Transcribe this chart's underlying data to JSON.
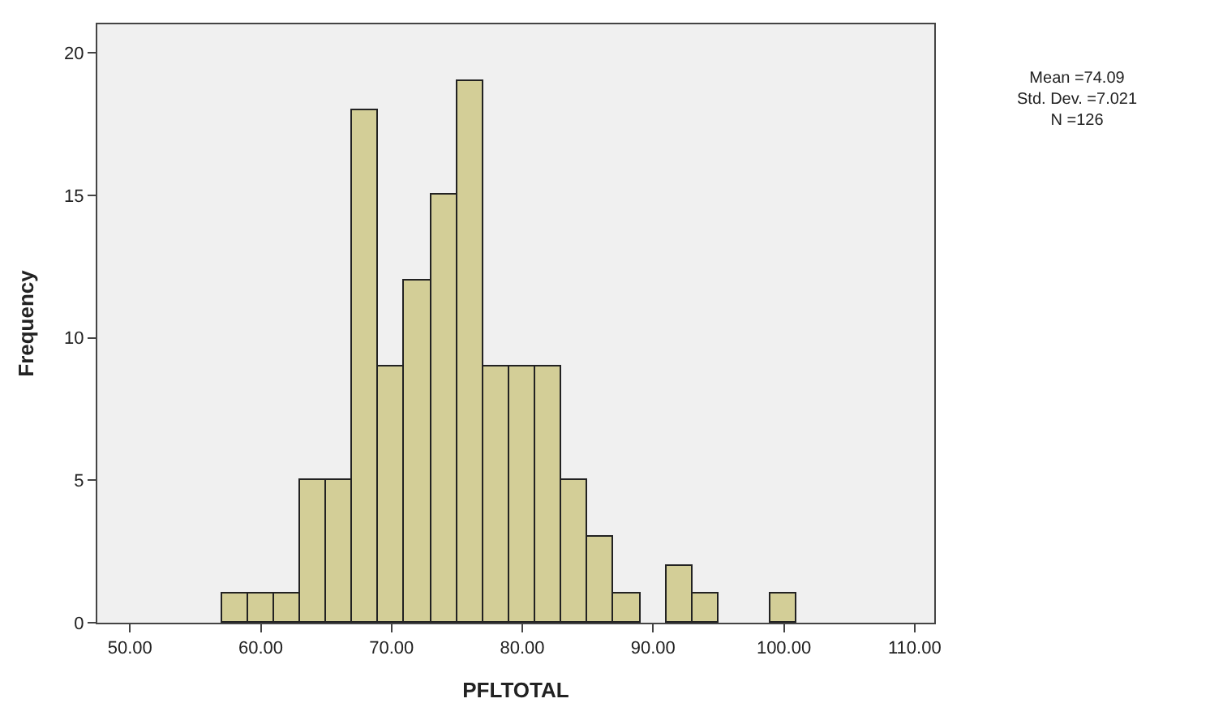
{
  "chart_data": {
    "type": "histogram",
    "xlabel": "PFLTOTAL",
    "ylabel": "Frequency",
    "bins": [
      57,
      59,
      61,
      63,
      65,
      67,
      69,
      71,
      73,
      75,
      77,
      79,
      81,
      83,
      85,
      87,
      89,
      91,
      93,
      95,
      97,
      99,
      101
    ],
    "values": [
      1,
      1,
      1,
      5,
      5,
      18,
      9,
      12,
      15,
      19,
      9,
      9,
      9,
      5,
      3,
      1,
      0,
      2,
      1,
      0,
      0,
      1
    ],
    "color": "#d3ce97",
    "xlim": [
      47.5,
      111.5
    ],
    "xticks": [
      {
        "value": 50,
        "label": "50.00"
      },
      {
        "value": 60,
        "label": "60.00"
      },
      {
        "value": 70,
        "label": "70.00"
      },
      {
        "value": 80,
        "label": "80.00"
      },
      {
        "value": 90,
        "label": "90.00"
      },
      {
        "value": 100,
        "label": "100.00"
      },
      {
        "value": 110,
        "label": "110.00"
      }
    ],
    "ylim": [
      0,
      21
    ],
    "yticks": [
      0,
      5,
      10,
      15,
      20
    ],
    "grid": false,
    "annotations": [
      "Mean =74.09\nStd. Dev. =7.021\nN =126"
    ]
  }
}
